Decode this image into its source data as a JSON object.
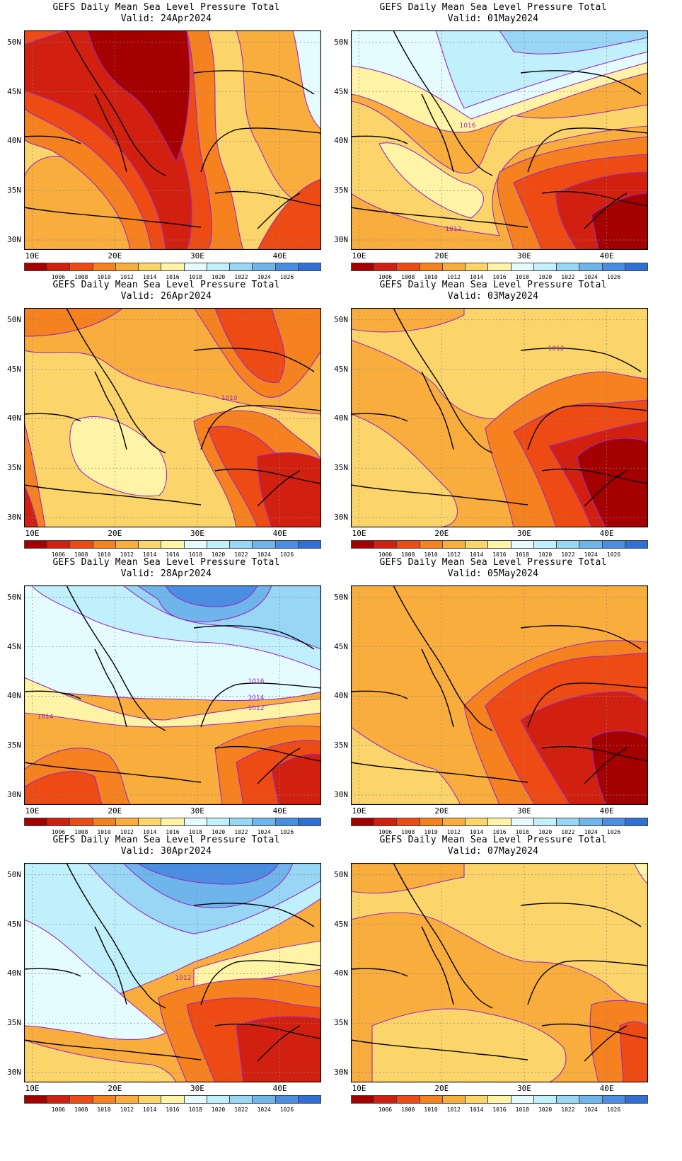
{
  "palette": [
    "#a40000",
    "#d11f10",
    "#ee4a13",
    "#f5811f",
    "#f9ad3c",
    "#fcd56a",
    "#fff3a5",
    "#e4fcff",
    "#bff0fb",
    "#97d7f5",
    "#6eb5ec",
    "#4a8ee3",
    "#2f6fd6"
  ],
  "contour_color": "#9a2ac4",
  "colorbar_ticks": [
    "1006",
    "1008",
    "1010",
    "1012",
    "1014",
    "1016",
    "1018",
    "1020",
    "1022",
    "1024",
    "1026"
  ],
  "lat_labels": [
    "50N",
    "45N",
    "40N",
    "35N",
    "30N"
  ],
  "lon_labels": [
    "10E",
    "20E",
    "30E",
    "40E"
  ],
  "panels": [
    {
      "title": "GEFS Daily Mean Sea Level Pressure Total",
      "valid": "Valid: 24Apr2024",
      "contour_labels": []
    },
    {
      "title": "GEFS Daily Mean Sea Level Pressure Total",
      "valid": "Valid: 01May2024",
      "contour_labels": [
        "1016",
        "1012"
      ]
    },
    {
      "title": "GEFS Daily Mean Sea Level Pressure Total",
      "valid": "Valid: 26Apr2024",
      "contour_labels": [
        "1010"
      ]
    },
    {
      "title": "GEFS Daily Mean Sea Level Pressure Total",
      "valid": "Valid: 03May2024",
      "contour_labels": [
        "1012"
      ]
    },
    {
      "title": "GEFS Daily Mean Sea Level Pressure Total",
      "valid": "Valid: 28Apr2024",
      "contour_labels": [
        "1016",
        "1014",
        "1012",
        "1014"
      ]
    },
    {
      "title": "GEFS Daily Mean Sea Level Pressure Total",
      "valid": "Valid: 05May2024",
      "contour_labels": []
    },
    {
      "title": "GEFS Daily Mean Sea Level Pressure Total",
      "valid": "Valid: 30Apr2024",
      "contour_labels": [
        "1012"
      ]
    },
    {
      "title": "GEFS Daily Mean Sea Level Pressure Total",
      "valid": "Valid: 07May2024",
      "contour_labels": []
    }
  ]
}
